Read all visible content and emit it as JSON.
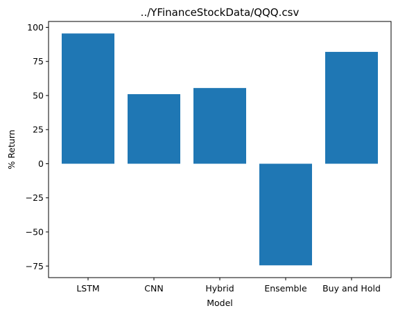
{
  "chart_data": {
    "type": "bar",
    "title": "../YFinanceStockData/QQQ.csv",
    "xlabel": "Model",
    "ylabel": "% Return",
    "categories": [
      "LSTM",
      "CNN",
      "Hybrid",
      "Ensemble",
      "Buy and Hold"
    ],
    "values": [
      95.5,
      51,
      55.5,
      -74.5,
      82
    ],
    "ylim": [
      -83.5,
      104.3
    ],
    "yticks": [
      100,
      75,
      50,
      25,
      0,
      -25,
      -50,
      -75
    ],
    "ytick_labels": [
      "100",
      "75",
      "50",
      "25",
      "0",
      "−25",
      "−50",
      "−75"
    ],
    "bar_color": "#1f77b4",
    "grid": false,
    "legend": "none"
  }
}
